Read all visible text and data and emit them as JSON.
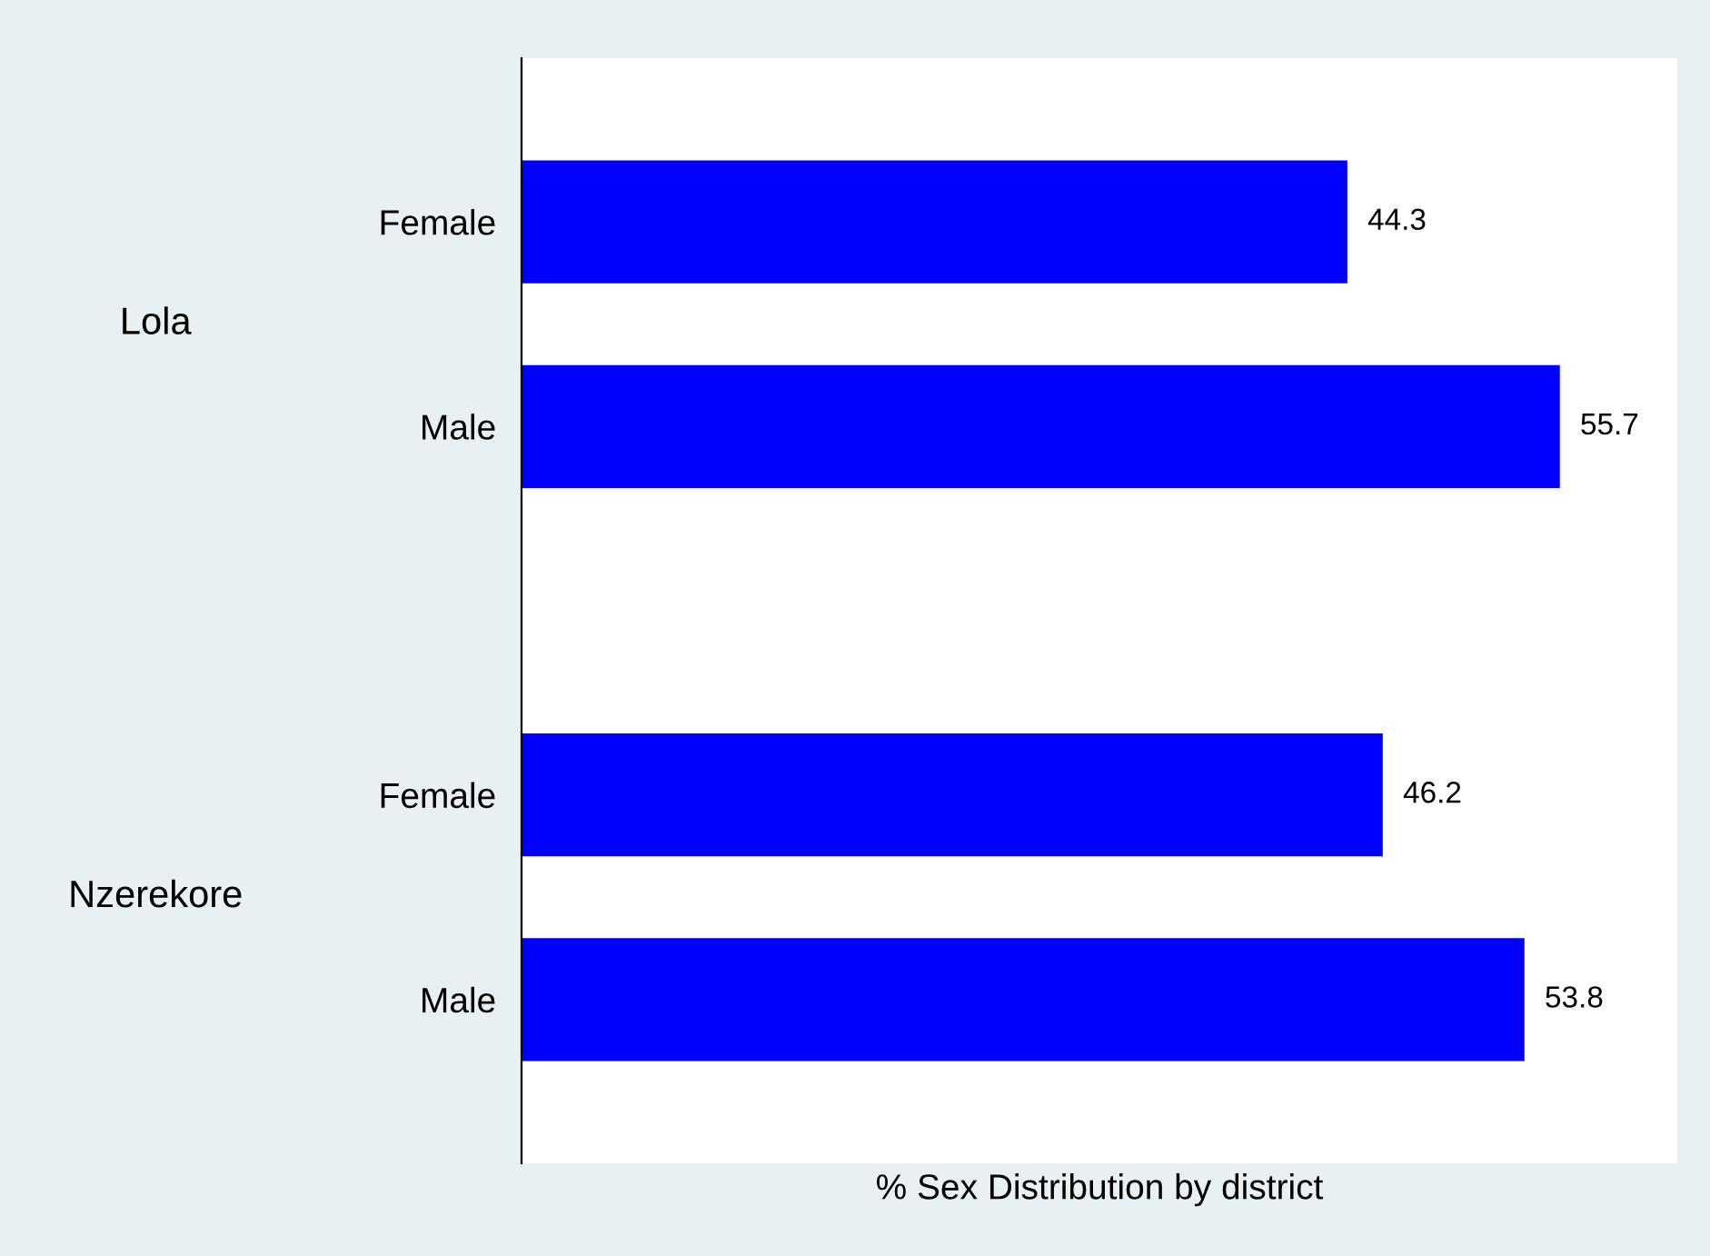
{
  "chart_data": {
    "type": "bar",
    "orientation": "horizontal",
    "xlabel": "% Sex Distribution by district",
    "categories": [
      "Female",
      "Male",
      "Female",
      "Male"
    ],
    "values": [
      44.3,
      55.7,
      46.2,
      53.8
    ],
    "color": "#0000ff",
    "annotations": [
      "Lola",
      "Nzerekore"
    ],
    "xlim": [
      0,
      62
    ],
    "data_labels": true,
    "grid": false,
    "legend": false
  }
}
